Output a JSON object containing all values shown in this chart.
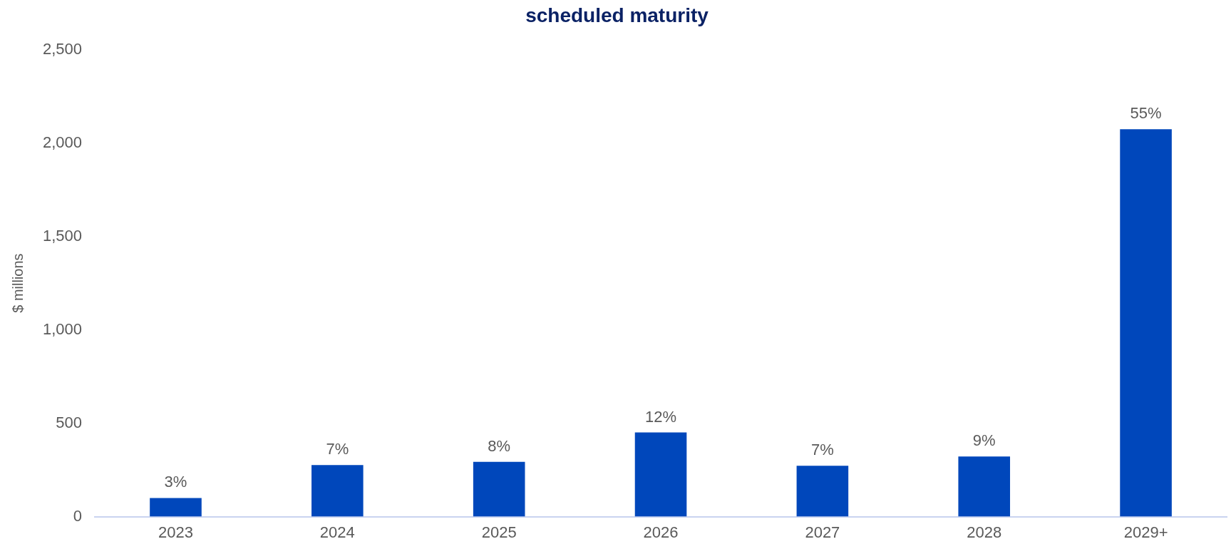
{
  "chart_data": {
    "type": "bar",
    "title": "scheduled maturity",
    "ylabel": "$ millions",
    "categories": [
      "2023",
      "2024",
      "2025",
      "2026",
      "2027",
      "2028",
      "2029+"
    ],
    "values": [
      100,
      276,
      293,
      451,
      272,
      322,
      2074
    ],
    "annotations": [
      {
        "text": "3%",
        "x": "2023",
        "y": 100
      },
      {
        "text": "7%",
        "x": "2024",
        "y": 276
      },
      {
        "text": "8%",
        "x": "2025",
        "y": 293
      },
      {
        "text": "12%",
        "x": "2026",
        "y": 451
      },
      {
        "text": "7%",
        "x": "2027",
        "y": 272
      },
      {
        "text": "9%",
        "x": "2028",
        "y": 322
      },
      {
        "text": "55%",
        "x": "2029+",
        "y": 2074
      }
    ],
    "color": "#0047bb",
    "ylim": [
      0,
      2500
    ],
    "yticks": [
      0,
      500,
      {
        "value": 1000,
        "label": "1,000"
      },
      {
        "value": 1500,
        "label": "1,500"
      },
      {
        "value": 2000,
        "label": "2,000"
      },
      {
        "value": 2500,
        "label": "2,500"
      }
    ],
    "grid": false,
    "legend": false
  }
}
